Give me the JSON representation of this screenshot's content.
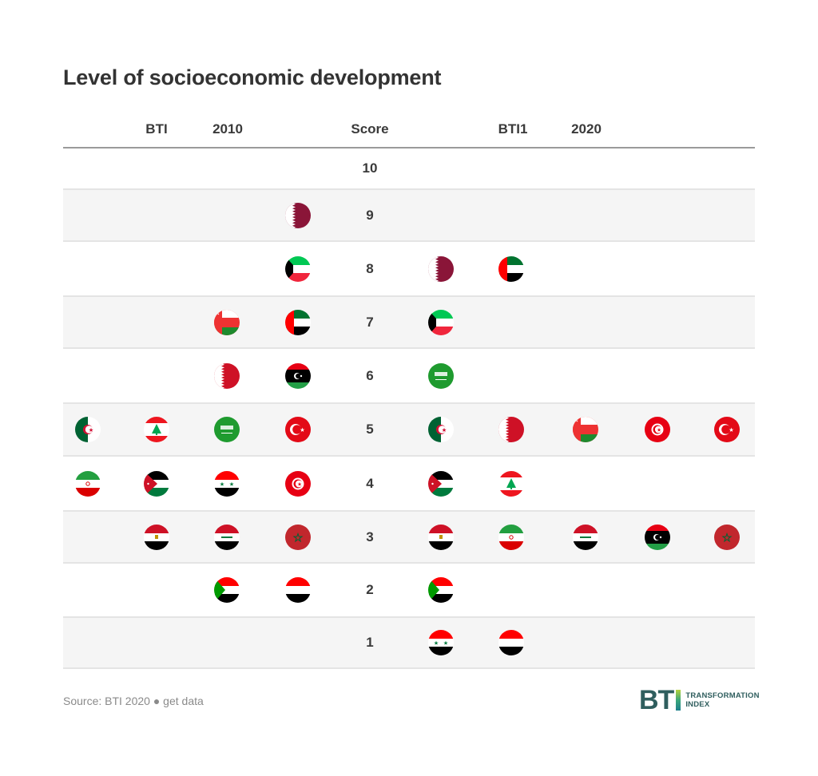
{
  "title": "Level of socioeconomic development",
  "headers": {
    "left_a": "BTI",
    "left_b": "2010",
    "center": "Score",
    "right_a": "BTI1",
    "right_b": "2020"
  },
  "footer": {
    "source": "Source: BTI 2020 ● get data",
    "logo_main": "BT",
    "logo_line1": "TRANSFORMATION",
    "logo_line2": "INDEX"
  },
  "colors": {
    "row_alt": "#f5f5f5",
    "separator": "#e4e4e4",
    "header_rule": "#9a9a9a",
    "logo": "#2f5e5e"
  },
  "chart_data": {
    "type": "table",
    "title": "Level of socioeconomic development",
    "xlabel": "",
    "ylabel": "Score",
    "score_range": [
      1,
      10
    ],
    "columns": [
      "BTI 2010",
      "Score",
      "BTI 2020"
    ],
    "rows": [
      {
        "score": 10,
        "bti2010": [],
        "bti2020": []
      },
      {
        "score": 9,
        "bti2010": [
          "Qatar"
        ],
        "bti2020": []
      },
      {
        "score": 8,
        "bti2010": [
          "Kuwait"
        ],
        "bti2020": [
          "Qatar",
          "United Arab Emirates"
        ]
      },
      {
        "score": 7,
        "bti2010": [
          "Oman",
          "United Arab Emirates"
        ],
        "bti2020": [
          "Kuwait"
        ]
      },
      {
        "score": 6,
        "bti2010": [
          "Bahrain",
          "Libya"
        ],
        "bti2020": [
          "Saudi Arabia"
        ]
      },
      {
        "score": 5,
        "bti2010": [
          "Algeria",
          "Lebanon",
          "Saudi Arabia",
          "Turkey"
        ],
        "bti2020": [
          "Algeria",
          "Bahrain",
          "Oman",
          "Tunisia",
          "Turkey"
        ]
      },
      {
        "score": 4,
        "bti2010": [
          "Iran",
          "Jordan",
          "Syria",
          "Tunisia"
        ],
        "bti2020": [
          "Jordan",
          "Lebanon"
        ]
      },
      {
        "score": 3,
        "bti2010": [
          "Egypt",
          "Iraq",
          "Morocco"
        ],
        "bti2020": [
          "Egypt",
          "Iran",
          "Iraq",
          "Libya",
          "Morocco"
        ]
      },
      {
        "score": 2,
        "bti2010": [
          "Sudan",
          "Yemen"
        ],
        "bti2020": [
          "Sudan"
        ]
      },
      {
        "score": 1,
        "bti2010": [],
        "bti2020": [
          "Syria",
          "Yemen"
        ]
      }
    ]
  }
}
